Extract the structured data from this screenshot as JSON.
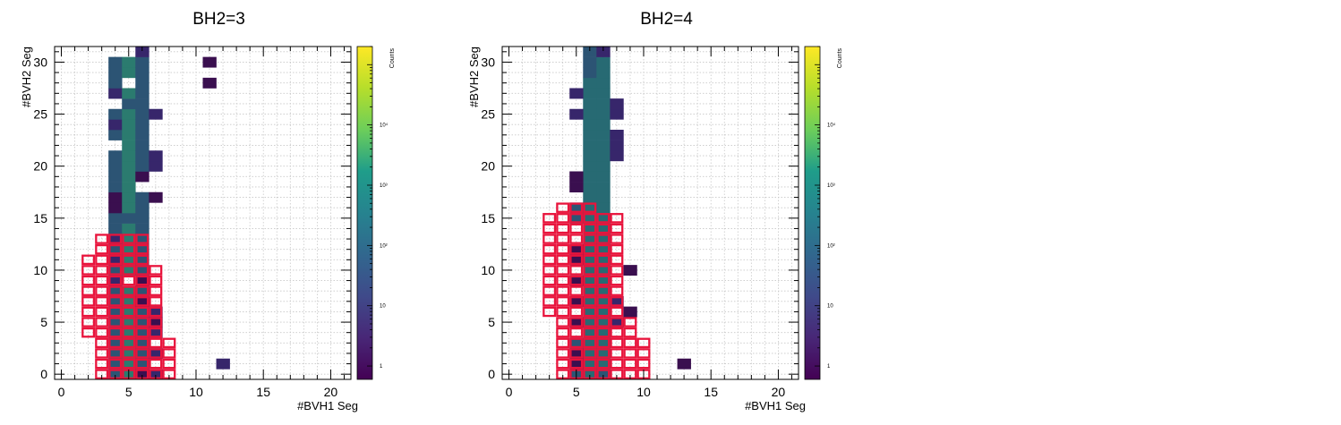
{
  "chart_data": [
    {
      "type": "heatmap",
      "title": "BH2=3",
      "xlabel": "#BVH1 Seg",
      "ylabel": "#BVH2 Seg",
      "zlabel": "Counts",
      "xlim": [
        -0.5,
        21.5
      ],
      "ylim": [
        -0.5,
        31.5
      ],
      "zlog": true,
      "zlim": [
        0.6,
        200000
      ],
      "grid": true,
      "colormap": "viridis",
      "xticks": [
        "0",
        "5",
        "10",
        "15",
        "20"
      ],
      "yticks": [
        "0",
        "5",
        "10",
        "15",
        "20",
        "25",
        "30"
      ],
      "zticks": [
        "1",
        "10",
        "10²",
        "10³",
        "10⁴"
      ],
      "columns": [
        {
          "x": 4,
          "y_min": 0,
          "y_max": 30,
          "level": 3,
          "empty": [
            22,
            26
          ]
        },
        {
          "x": 5,
          "y_min": 0,
          "y_max": 30,
          "level": 5,
          "empty": [
            9,
            28
          ]
        },
        {
          "x": 6,
          "y_min": 0,
          "y_max": 31,
          "level": 3,
          "empty": [
            18
          ]
        },
        {
          "x": 7,
          "y_min": 17,
          "y_max": 25,
          "level": 1,
          "only": [
            17,
            20,
            21,
            25
          ]
        }
      ],
      "overrides": [
        {
          "x": 4,
          "y": 9,
          "level": 1
        },
        {
          "x": 4,
          "y": 11,
          "level": 1
        },
        {
          "x": 4,
          "y": 13,
          "level": 1
        },
        {
          "x": 4,
          "y": 16,
          "level": 0
        },
        {
          "x": 4,
          "y": 17,
          "level": 0
        },
        {
          "x": 4,
          "y": 24,
          "level": 1
        },
        {
          "x": 4,
          "y": 27,
          "level": 1
        },
        {
          "x": 5,
          "y": 15,
          "level": 3
        },
        {
          "x": 5,
          "y": 26,
          "level": 3
        },
        {
          "x": 6,
          "y": 0,
          "level": 0
        },
        {
          "x": 6,
          "y": 7,
          "level": 0
        },
        {
          "x": 6,
          "y": 9,
          "level": 0
        },
        {
          "x": 6,
          "y": 19,
          "level": 0
        },
        {
          "x": 6,
          "y": 31,
          "level": 1
        },
        {
          "x": 7,
          "y": 17,
          "level": 0
        }
      ],
      "extra_bins": [
        {
          "x": 7,
          "y": 0,
          "level": 1
        },
        {
          "x": 7,
          "y": 2,
          "level": 1
        },
        {
          "x": 7,
          "y": 4,
          "level": 1
        },
        {
          "x": 7,
          "y": 5,
          "level": 0
        },
        {
          "x": 7,
          "y": 6,
          "level": 1
        },
        {
          "x": 11,
          "y": 28,
          "level": 0
        },
        {
          "x": 11,
          "y": 30,
          "level": 0
        },
        {
          "x": 12,
          "y": 1,
          "level": 1
        }
      ],
      "cut_rows": [
        {
          "y": 0,
          "x_min": 3,
          "x_max": 8
        },
        {
          "y": 1,
          "x_min": 3,
          "x_max": 8
        },
        {
          "y": 2,
          "x_min": 3,
          "x_max": 8
        },
        {
          "y": 3,
          "x_min": 3,
          "x_max": 8
        },
        {
          "y": 4,
          "x_min": 2,
          "x_max": 7
        },
        {
          "y": 5,
          "x_min": 2,
          "x_max": 7
        },
        {
          "y": 6,
          "x_min": 2,
          "x_max": 7
        },
        {
          "y": 7,
          "x_min": 2,
          "x_max": 7
        },
        {
          "y": 8,
          "x_min": 2,
          "x_max": 7
        },
        {
          "y": 9,
          "x_min": 2,
          "x_max": 7
        },
        {
          "y": 10,
          "x_min": 2,
          "x_max": 7
        },
        {
          "y": 11,
          "x_min": 2,
          "x_max": 6
        },
        {
          "y": 12,
          "x_min": 3,
          "x_max": 6
        },
        {
          "y": 13,
          "x_min": 3,
          "x_max": 6
        }
      ]
    },
    {
      "type": "heatmap",
      "title": "BH2=4",
      "xlabel": "#BVH1 Seg",
      "ylabel": "#BVH2 Seg",
      "zlabel": "Counts",
      "xlim": [
        -0.5,
        21.5
      ],
      "ylim": [
        -0.5,
        31.5
      ],
      "zlog": true,
      "zlim": [
        0.6,
        200000
      ],
      "grid": true,
      "colormap": "viridis",
      "xticks": [
        "0",
        "5",
        "10",
        "15",
        "20"
      ],
      "yticks": [
        "0",
        "5",
        "10",
        "15",
        "20",
        "25",
        "30"
      ],
      "zticks": [
        "1",
        "10",
        "10²",
        "10³",
        "10⁴"
      ],
      "columns": [
        {
          "x": 6,
          "y_min": 0,
          "y_max": 31,
          "level": 4
        },
        {
          "x": 7,
          "y_min": 0,
          "y_max": 31,
          "level": 4
        }
      ],
      "overrides": [
        {
          "x": 6,
          "y": 29,
          "level": 3
        },
        {
          "x": 6,
          "y": 30,
          "level": 3
        },
        {
          "x": 6,
          "y": 31,
          "level": 3
        },
        {
          "x": 7,
          "y": 0,
          "level": 3
        },
        {
          "x": 7,
          "y": 31,
          "level": 1
        }
      ],
      "extra_bins": [
        {
          "x": 5,
          "y": 0,
          "level": 3
        },
        {
          "x": 5,
          "y": 1,
          "level": 0
        },
        {
          "x": 5,
          "y": 2,
          "level": 0
        },
        {
          "x": 5,
          "y": 3,
          "level": 3
        },
        {
          "x": 5,
          "y": 5,
          "level": 0
        },
        {
          "x": 5,
          "y": 7,
          "level": 0
        },
        {
          "x": 5,
          "y": 9,
          "level": 0
        },
        {
          "x": 5,
          "y": 11,
          "level": 0
        },
        {
          "x": 5,
          "y": 12,
          "level": 0
        },
        {
          "x": 5,
          "y": 15,
          "level": 3
        },
        {
          "x": 5,
          "y": 16,
          "level": 3
        },
        {
          "x": 5,
          "y": 18,
          "level": 0
        },
        {
          "x": 5,
          "y": 19,
          "level": 0
        },
        {
          "x": 5,
          "y": 25,
          "level": 1
        },
        {
          "x": 5,
          "y": 27,
          "level": 1
        },
        {
          "x": 8,
          "y": 5,
          "level": 1
        },
        {
          "x": 8,
          "y": 7,
          "level": 1
        },
        {
          "x": 8,
          "y": 21,
          "level": 1
        },
        {
          "x": 8,
          "y": 22,
          "level": 1
        },
        {
          "x": 8,
          "y": 23,
          "level": 1
        },
        {
          "x": 8,
          "y": 25,
          "level": 1
        },
        {
          "x": 8,
          "y": 26,
          "level": 1
        },
        {
          "x": 9,
          "y": 6,
          "level": 0
        },
        {
          "x": 9,
          "y": 10,
          "level": 0
        },
        {
          "x": 13,
          "y": 1,
          "level": 0
        }
      ],
      "cut_rows": [
        {
          "y": 0,
          "x_min": 4,
          "x_max": 10
        },
        {
          "y": 1,
          "x_min": 4,
          "x_max": 10
        },
        {
          "y": 2,
          "x_min": 4,
          "x_max": 10
        },
        {
          "y": 3,
          "x_min": 4,
          "x_max": 10
        },
        {
          "y": 4,
          "x_min": 4,
          "x_max": 9
        },
        {
          "y": 5,
          "x_min": 4,
          "x_max": 9
        },
        {
          "y": 6,
          "x_min": 3,
          "x_max": 8
        },
        {
          "y": 7,
          "x_min": 3,
          "x_max": 8
        },
        {
          "y": 8,
          "x_min": 3,
          "x_max": 8
        },
        {
          "y": 9,
          "x_min": 3,
          "x_max": 8
        },
        {
          "y": 10,
          "x_min": 3,
          "x_max": 8
        },
        {
          "y": 11,
          "x_min": 3,
          "x_max": 8
        },
        {
          "y": 12,
          "x_min": 3,
          "x_max": 8
        },
        {
          "y": 13,
          "x_min": 3,
          "x_max": 8
        },
        {
          "y": 14,
          "x_min": 3,
          "x_max": 8
        },
        {
          "y": 15,
          "x_min": 3,
          "x_max": 8
        },
        {
          "y": 16,
          "x_min": 4,
          "x_max": 6
        }
      ]
    }
  ],
  "palette": [
    "#3a0f4f",
    "#37266b",
    "#343b77",
    "#2c5474",
    "#276a73",
    "#2b7b6f"
  ],
  "cut_color": "#e8143c"
}
